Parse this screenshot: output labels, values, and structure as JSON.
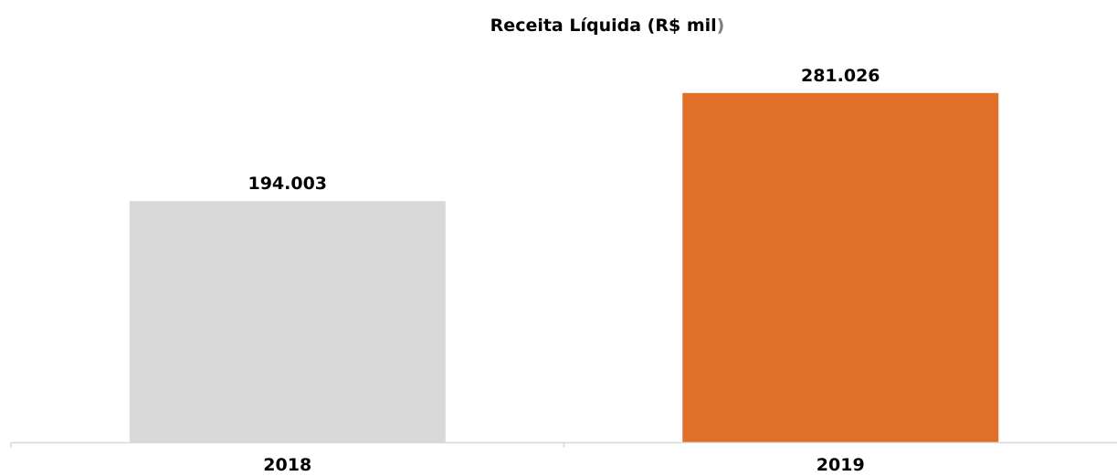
{
  "chart_data": {
    "type": "bar",
    "title": "Receita Líquida (R$ mil",
    "title_suffix": ")",
    "categories": [
      "2018",
      "2019"
    ],
    "values": [
      194003,
      281026
    ],
    "data_labels": [
      "194.003",
      "281.026"
    ],
    "bar_colors": [
      "#d9d9d9",
      "#e07028"
    ],
    "xlabel": "",
    "ylabel": "",
    "ylim": [
      0,
      300000
    ],
    "grid": false,
    "legend": "none"
  }
}
